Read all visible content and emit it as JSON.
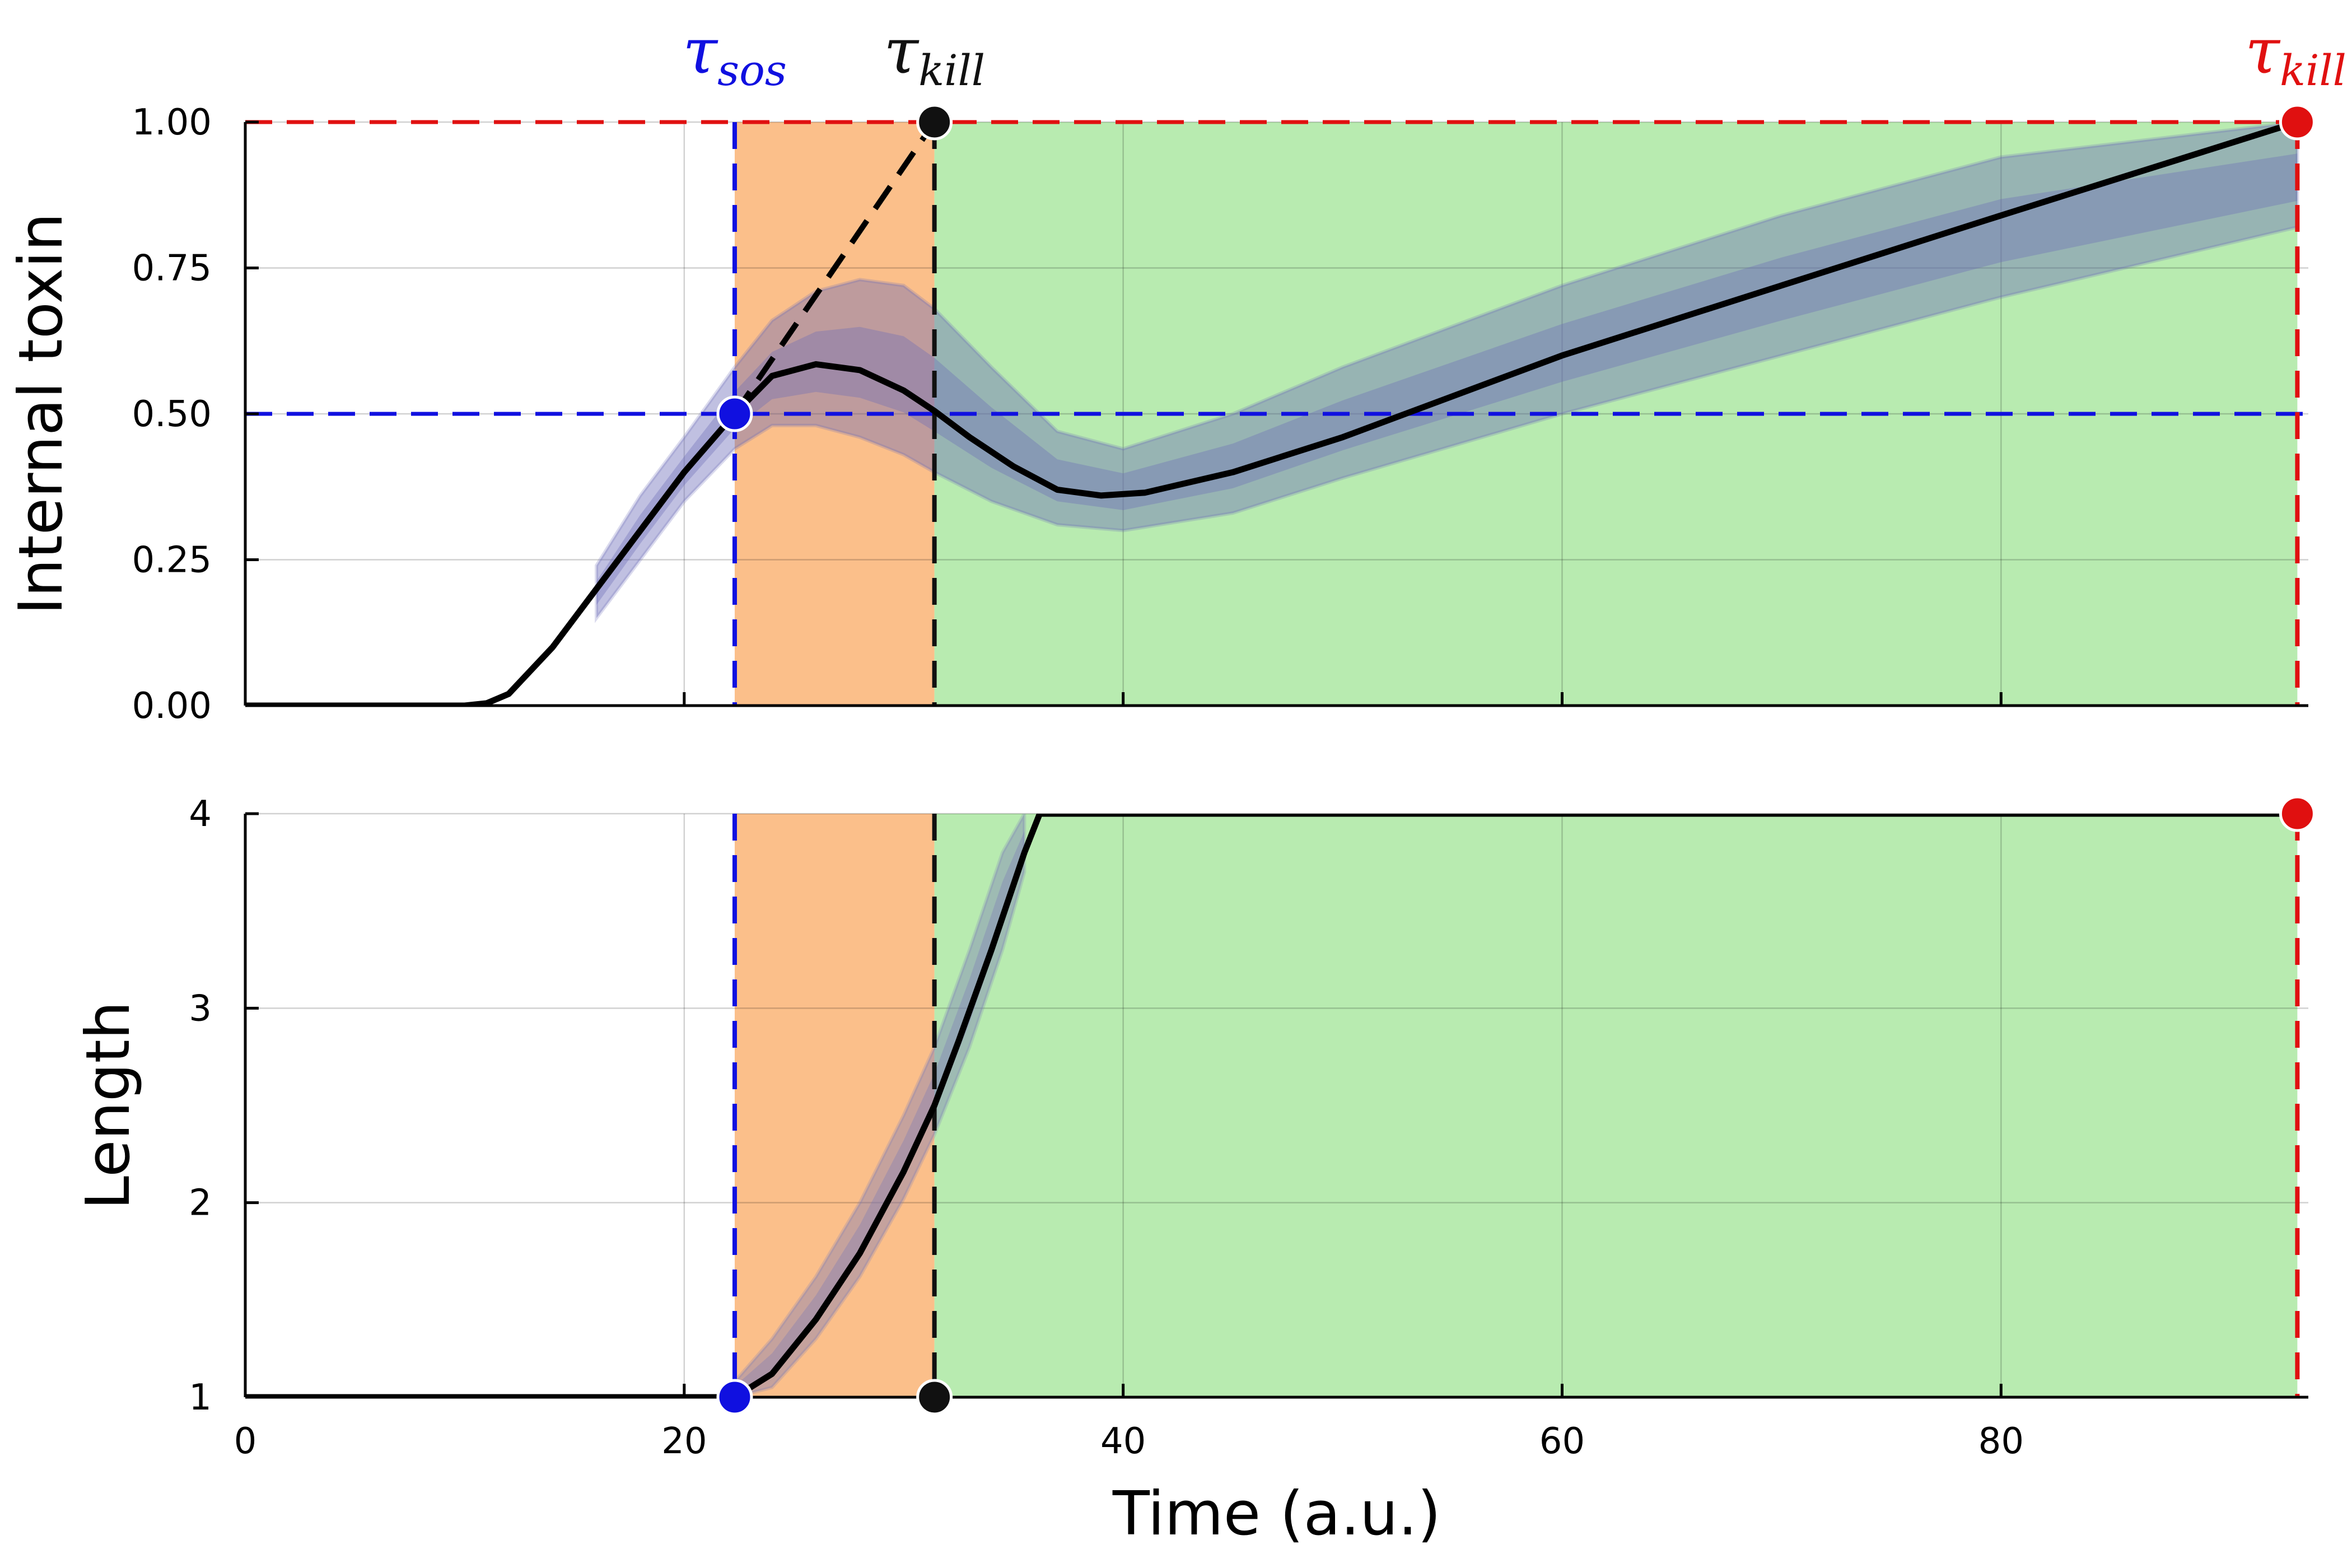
{
  "chart_data": [
    {
      "type": "line",
      "panel": "top",
      "ylabel": "Internal toxin",
      "xlim": [
        0,
        94
      ],
      "ylim": [
        0,
        1
      ],
      "y_ticks": [
        "0.00",
        "0.25",
        "0.50",
        "0.75",
        "1.00"
      ],
      "grid": true,
      "shaded_regions": [
        {
          "from": 22.3,
          "to": 31.4,
          "color": "#fbbf8a"
        },
        {
          "from": 31.4,
          "to": 93.5,
          "color": "#b8ebb0"
        }
      ],
      "mean_curve": {
        "x": [
          0,
          10,
          11,
          12,
          14,
          16,
          18,
          20,
          22.3,
          24,
          26,
          28,
          30,
          31.4,
          33,
          35,
          37,
          39,
          41,
          45,
          50,
          60,
          70,
          80,
          93.5
        ],
        "y": [
          0,
          0,
          0.004,
          0.02,
          0.1,
          0.2,
          0.3,
          0.4,
          0.5,
          0.565,
          0.585,
          0.575,
          0.54,
          0.505,
          0.46,
          0.41,
          0.37,
          0.36,
          0.365,
          0.4,
          0.46,
          0.6,
          0.72,
          0.84,
          1.0
        ],
        "color": "#000000"
      },
      "projected_line": {
        "x": [
          22.3,
          31.4
        ],
        "y": [
          0.5,
          1.0
        ],
        "color": "#000000",
        "dashed": true
      },
      "ensemble_band": {
        "x": [
          16,
          18,
          20,
          22.3,
          24,
          26,
          28,
          30,
          31.4,
          34,
          37,
          40,
          45,
          50,
          60,
          70,
          80,
          93.5
        ],
        "low": [
          0.15,
          0.25,
          0.35,
          0.44,
          0.48,
          0.48,
          0.46,
          0.43,
          0.4,
          0.35,
          0.31,
          0.3,
          0.33,
          0.39,
          0.5,
          0.6,
          0.7,
          0.82
        ],
        "high": [
          0.24,
          0.36,
          0.46,
          0.58,
          0.66,
          0.71,
          0.73,
          0.72,
          0.68,
          0.58,
          0.47,
          0.44,
          0.5,
          0.58,
          0.72,
          0.84,
          0.94,
          1.0
        ],
        "color": "#6a6ab8"
      },
      "threshold_lines": [
        {
          "y": 0.5,
          "color": "#1010e0"
        },
        {
          "y": 1.0,
          "color": "#e01010"
        }
      ],
      "event_lines": [
        {
          "x": 22.3,
          "color": "#1010e0"
        },
        {
          "x": 31.4,
          "color": "#111111"
        },
        {
          "x": 93.5,
          "color": "#e01010"
        }
      ],
      "markers": [
        {
          "x": 22.3,
          "y": 0.5,
          "color": "#1010e0"
        },
        {
          "x": 31.4,
          "y": 1.0,
          "color": "#111111"
        },
        {
          "x": 93.5,
          "y": 1.0,
          "color": "#e01010"
        }
      ],
      "annotations": [
        {
          "x": 22.3,
          "symbol": "τ",
          "sub": "sos",
          "color": "#1010e0"
        },
        {
          "x": 31.4,
          "symbol": "τ",
          "sub": "kill",
          "color": "#111111"
        },
        {
          "x": 93.5,
          "symbol": "τ",
          "sub": "kill",
          "color": "#e01010"
        }
      ]
    },
    {
      "type": "line",
      "panel": "bottom",
      "xlabel": "Time (a.u.)",
      "ylabel": "Length",
      "xlim": [
        0,
        94
      ],
      "ylim": [
        1,
        4
      ],
      "x_ticks": [
        "0",
        "20",
        "40",
        "60",
        "80"
      ],
      "y_ticks": [
        "1",
        "2",
        "3",
        "4"
      ],
      "grid": true,
      "shaded_regions": [
        {
          "from": 22.3,
          "to": 31.4,
          "color": "#fbbf8a"
        },
        {
          "from": 31.4,
          "to": 93.5,
          "color": "#b8ebb0"
        }
      ],
      "mean_curve": {
        "x": [
          0,
          22.3,
          24,
          26,
          28,
          30,
          31.4,
          32.5,
          34,
          35.5,
          36.2,
          40,
          60,
          80,
          93.5
        ],
        "y": [
          1,
          1,
          1.12,
          1.4,
          1.74,
          2.16,
          2.5,
          2.83,
          3.3,
          3.8,
          4.0,
          4.0,
          4.0,
          4.0,
          4.0
        ],
        "color": "#000000"
      },
      "ensemble_band": {
        "x": [
          21.5,
          22.3,
          24,
          26,
          28,
          30,
          31.4,
          33,
          34.5,
          35.5
        ],
        "low": [
          1,
          1,
          1.05,
          1.3,
          1.62,
          2.02,
          2.35,
          2.8,
          3.3,
          3.7
        ],
        "high": [
          1,
          1.08,
          1.3,
          1.62,
          2.0,
          2.45,
          2.8,
          3.3,
          3.8,
          4.0
        ],
        "color": "#7a7ab8"
      },
      "event_lines": [
        {
          "x": 22.3,
          "color": "#1010e0"
        },
        {
          "x": 31.4,
          "color": "#111111"
        },
        {
          "x": 93.5,
          "color": "#e01010"
        }
      ],
      "markers": [
        {
          "x": 22.3,
          "y": 1,
          "color": "#1010e0"
        },
        {
          "x": 31.4,
          "y": 1,
          "color": "#111111"
        },
        {
          "x": 93.5,
          "y": 4,
          "color": "#e01010"
        }
      ]
    }
  ]
}
